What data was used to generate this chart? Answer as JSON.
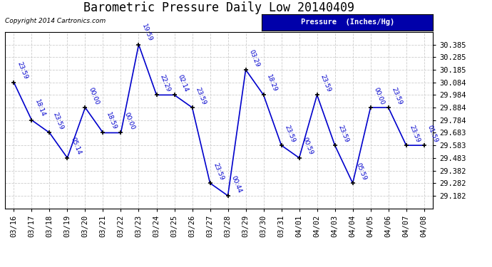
{
  "title": "Barometric Pressure Daily Low 20140409",
  "copyright": "Copyright 2014 Cartronics.com",
  "legend_label": "Pressure  (Inches/Hg)",
  "x_labels": [
    "03/16",
    "03/17",
    "03/18",
    "03/19",
    "03/20",
    "03/21",
    "03/22",
    "03/23",
    "03/24",
    "03/25",
    "03/26",
    "03/27",
    "03/28",
    "03/29",
    "03/30",
    "03/31",
    "04/01",
    "04/02",
    "04/03",
    "04/04",
    "04/05",
    "04/06",
    "04/07",
    "04/08"
  ],
  "point_labels": [
    "23:59",
    "18:14",
    "23:59",
    "05:14",
    "00:00",
    "18:59",
    "00:00",
    "19:59",
    "22:29",
    "02:14",
    "23:59",
    "23:59",
    "00:44",
    "03:29",
    "18:29",
    "23:59",
    "00:59",
    "23:59",
    "23:59",
    "05:59",
    "00:00",
    "23:59",
    "23:59",
    "01:59"
  ],
  "y_values": [
    30.084,
    29.784,
    29.683,
    29.483,
    29.884,
    29.683,
    29.683,
    30.385,
    29.984,
    29.984,
    29.884,
    29.282,
    29.182,
    30.185,
    29.984,
    29.583,
    29.483,
    29.984,
    29.583,
    29.282,
    29.884,
    29.884,
    29.583,
    29.583
  ],
  "yticks": [
    30.385,
    30.285,
    30.185,
    30.084,
    29.984,
    29.884,
    29.784,
    29.683,
    29.583,
    29.483,
    29.382,
    29.282,
    29.182
  ],
  "line_color": "#0000CC",
  "bg_color": "#FFFFFF",
  "grid_color": "#CCCCCC",
  "title_fontsize": 12,
  "tick_fontsize": 7.5,
  "anno_fontsize": 6.5,
  "legend_bg": "#0000AA",
  "legend_text_color": "#FFFFFF"
}
